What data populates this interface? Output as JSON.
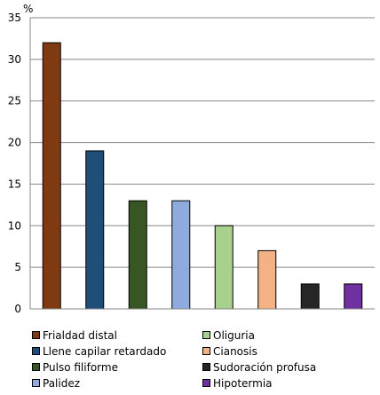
{
  "chart_data": {
    "type": "bar",
    "unit_label": "%",
    "categories": [
      "Frialdad distal",
      "Llene capilar retardado",
      "Pulso filiforme",
      "Palidez",
      "Oliguria",
      "Cianosis",
      "Sudoración profusa",
      "Hipotermia"
    ],
    "values": [
      32,
      19,
      13,
      13,
      10,
      7,
      3,
      3
    ],
    "colors": [
      "#7f3a12",
      "#1f4e79",
      "#375623",
      "#8faadc",
      "#a9d18e",
      "#f4b183",
      "#262626",
      "#7030a0"
    ],
    "ylim": [
      0,
      35
    ],
    "yticks": [
      0,
      5,
      10,
      15,
      20,
      25,
      30,
      35
    ],
    "grid": true,
    "legend_position": "bottom"
  }
}
